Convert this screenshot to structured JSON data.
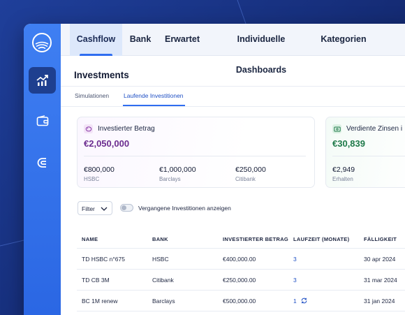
{
  "nav": {
    "tabs": [
      {
        "label": "Cashflow",
        "active": true
      },
      {
        "label": "Bank"
      },
      {
        "label": "Erwartet"
      },
      {
        "label": "Individuelle Dashboards"
      },
      {
        "label": "Kategorien"
      }
    ]
  },
  "sidebar": {
    "items": [
      {
        "icon": "chart-trend-icon",
        "active": true
      },
      {
        "icon": "wallet-icon"
      },
      {
        "icon": "magnet-icon"
      }
    ]
  },
  "page": {
    "title": "Investments",
    "subtabs": [
      {
        "label": "Simulationen"
      },
      {
        "label": "Laufende Investitionen",
        "active": true
      }
    ]
  },
  "cards": {
    "invested": {
      "label": "Investierter Betrag",
      "value": "€2,050,000",
      "accent": "#6b2c8f",
      "breakdown": [
        {
          "value": "€800,000",
          "label": "HSBC"
        },
        {
          "value": "€1,000,000",
          "label": "Barclays"
        },
        {
          "value": "€250,000",
          "label": "Citibank"
        }
      ]
    },
    "interest": {
      "label": "Verdiente Zinsen i",
      "value": "€30,839",
      "accent": "#1f7a4a",
      "breakdown": [
        {
          "value": "€2,949",
          "label": "Erhalten"
        }
      ]
    }
  },
  "filters": {
    "filter_label": "Filter",
    "toggle_label": "Vergangene Investitionen anzeigen",
    "toggle_on": false
  },
  "table": {
    "headers": [
      "NAME",
      "BANK",
      "INVESTIERTER BETRAG",
      "LAUFZEIT (MONATE)",
      "FÄLLIGKEIT"
    ],
    "rows": [
      {
        "name": "TD HSBC n°675",
        "bank": "HSBC",
        "amount": "€400,000.00",
        "term": "3",
        "due": "30 apr 2024"
      },
      {
        "name": "TD CB 3M",
        "bank": "Citibank",
        "amount": "€250,000.00",
        "term": "3",
        "due": "31 mar 2024"
      },
      {
        "name": "BC 1M renew",
        "bank": "Barclays",
        "amount": "€500,000.00",
        "term": "1",
        "due": "31 jan 2024",
        "renew": true
      }
    ]
  },
  "colors": {
    "brand_blue": "#2f6df0",
    "rail": "#3a7af0",
    "rail_active": "#1e3f8f"
  }
}
